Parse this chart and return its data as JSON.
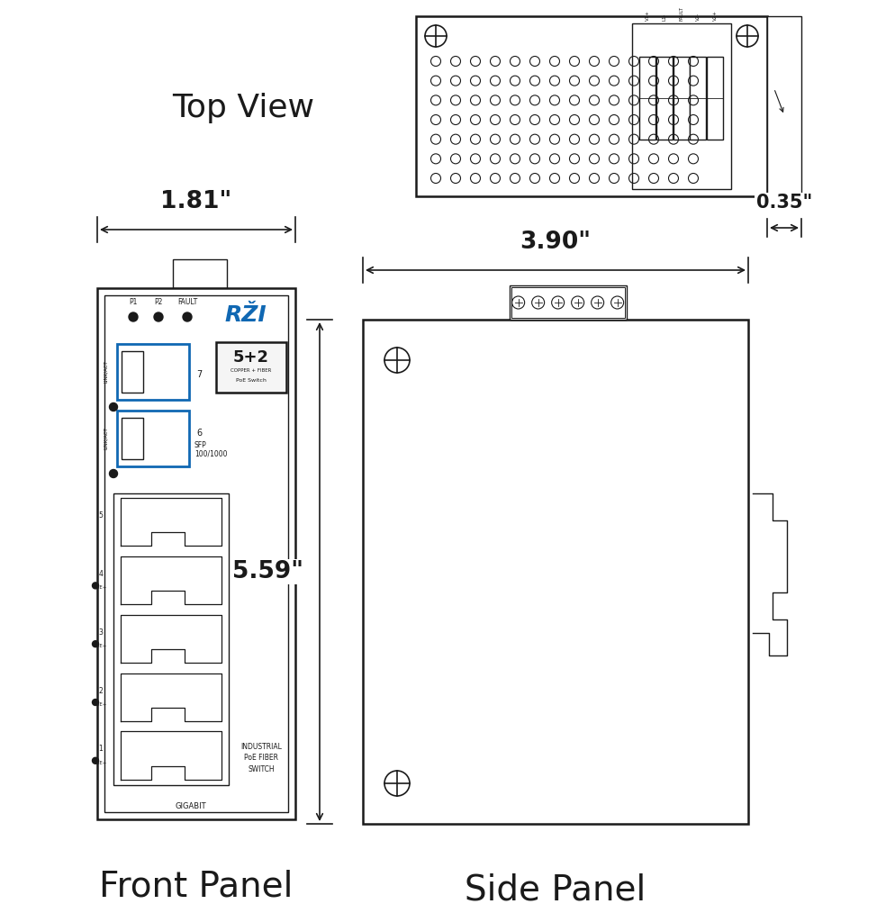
{
  "bg_color": "#ffffff",
  "line_color": "#1a1a1a",
  "blue_color": "#1068B3",
  "labels": {
    "top_view": "Top View",
    "front_panel": "Front Panel",
    "side_panel": "Side Panel",
    "dim_181": "1.81\"",
    "dim_390": "3.90\"",
    "dim_559": "5.59\"",
    "dim_035": "0.35\""
  }
}
